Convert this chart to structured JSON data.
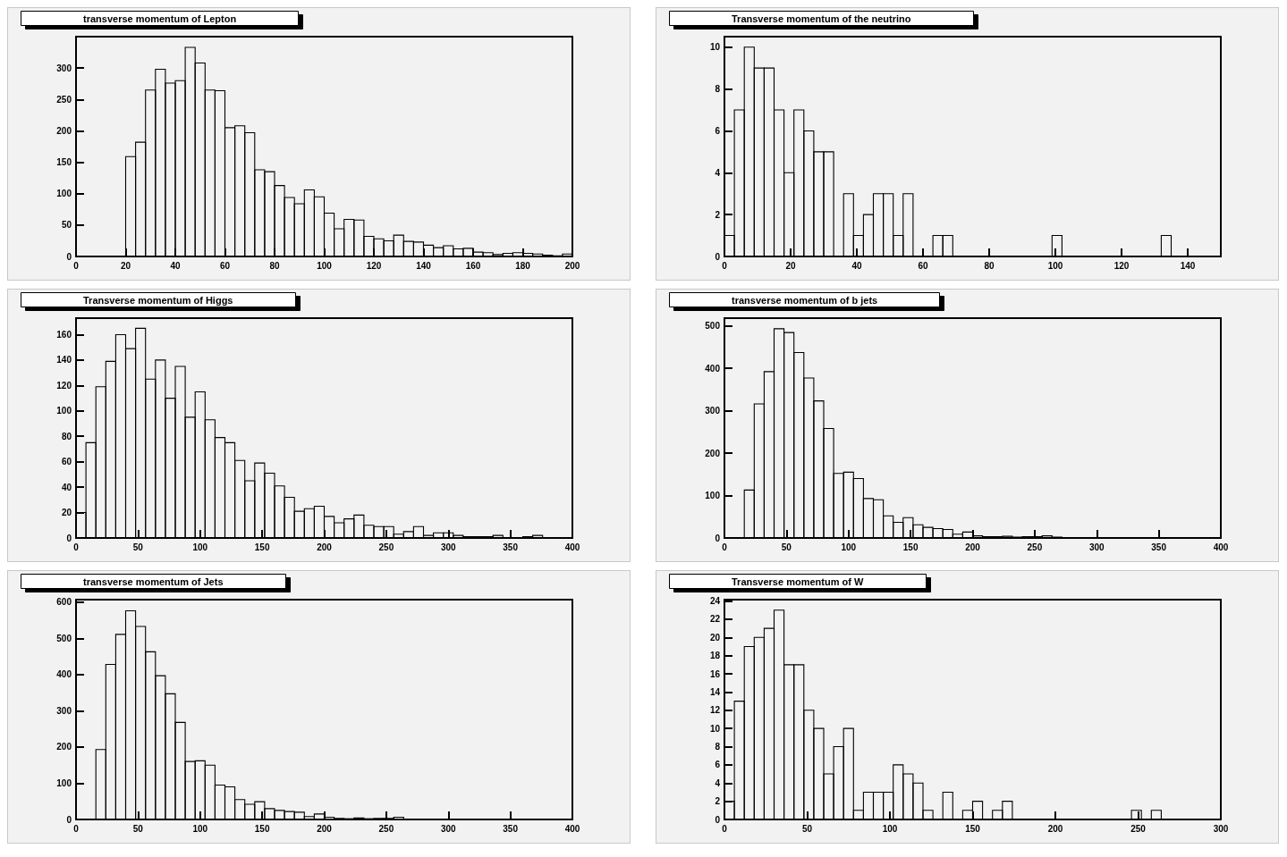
{
  "chart_data": [
    {
      "type": "histogram",
      "title": "transverse momentum of Lepton",
      "color": "#000000",
      "bins": [
        20,
        24,
        28,
        32,
        36,
        40,
        44,
        48,
        52,
        56,
        60,
        64,
        68,
        72,
        76,
        80,
        84,
        88,
        92,
        96,
        100,
        104,
        108,
        112,
        116,
        120,
        124,
        128,
        132,
        136,
        140,
        144,
        148,
        152,
        156,
        160,
        164,
        168,
        172,
        176,
        180,
        184,
        188,
        192,
        196,
        200
      ],
      "values": [
        159,
        182,
        265,
        298,
        276,
        280,
        333,
        308,
        265,
        264,
        205,
        208,
        197,
        138,
        135,
        113,
        94,
        84,
        106,
        95,
        69,
        44,
        59,
        58,
        32,
        28,
        25,
        34,
        24,
        23,
        18,
        14,
        17,
        12,
        13,
        7,
        6,
        3,
        5,
        6,
        5,
        4,
        2,
        1,
        4
      ],
      "xlim": [
        0,
        200
      ],
      "xticks": [
        0,
        20,
        40,
        60,
        80,
        100,
        120,
        140,
        160,
        180,
        200
      ],
      "ylim": [
        0,
        350
      ],
      "yticks": [
        0,
        50,
        100,
        150,
        200,
        250,
        300
      ]
    },
    {
      "type": "histogram",
      "title": "Transverse momentum of the neutrino",
      "color": "#000000",
      "bins": [
        0,
        3,
        6,
        9,
        12,
        15,
        18,
        21,
        24,
        27,
        30,
        33,
        36,
        39,
        42,
        45,
        48,
        51,
        54,
        57,
        60,
        63,
        66,
        69,
        72,
        75,
        78,
        81,
        84,
        87,
        90,
        93,
        96,
        99,
        102,
        105,
        108,
        111,
        114,
        117,
        120,
        123,
        126,
        129,
        132,
        135,
        138,
        141,
        144,
        147,
        150
      ],
      "values": [
        1,
        7,
        10,
        9,
        9,
        7,
        4,
        7,
        6,
        5,
        5,
        0,
        3,
        1,
        2,
        3,
        3,
        1,
        3,
        0,
        0,
        1,
        1,
        0,
        0,
        0,
        0,
        0,
        0,
        0,
        0,
        0,
        0,
        1,
        0,
        0,
        0,
        0,
        0,
        0,
        0,
        0,
        0,
        0,
        1,
        0,
        0,
        0,
        0,
        0
      ],
      "xlim": [
        0,
        150
      ],
      "xticks": [
        0,
        20,
        40,
        60,
        80,
        100,
        120,
        140
      ],
      "ylim": [
        0,
        10.5
      ],
      "yticks": [
        0,
        2,
        4,
        6,
        8,
        10
      ]
    },
    {
      "type": "histogram",
      "title": "Transverse momentum of Higgs",
      "color": "#000000",
      "bins": [
        0,
        8,
        16,
        24,
        32,
        40,
        48,
        56,
        64,
        72,
        80,
        88,
        96,
        104,
        112,
        120,
        128,
        136,
        144,
        152,
        160,
        168,
        176,
        184,
        192,
        200,
        208,
        216,
        224,
        232,
        240,
        248,
        256,
        264,
        272,
        280,
        288,
        296,
        304,
        312,
        320,
        328,
        336,
        344,
        352,
        360,
        368,
        376
      ],
      "values": [
        20,
        75,
        119,
        139,
        160,
        149,
        165,
        125,
        140,
        110,
        135,
        95,
        115,
        93,
        79,
        75,
        61,
        45,
        59,
        51,
        41,
        32,
        21,
        23,
        25,
        17,
        12,
        15,
        18,
        10,
        9,
        9,
        3,
        5,
        9,
        2,
        4,
        4,
        2,
        1,
        1,
        1,
        2,
        0,
        0,
        1,
        2
      ],
      "xlim": [
        0,
        400
      ],
      "xticks": [
        0,
        50,
        100,
        150,
        200,
        250,
        300,
        350,
        400
      ],
      "ylim": [
        0,
        173
      ],
      "yticks": [
        0,
        20,
        40,
        60,
        80,
        100,
        120,
        140,
        160
      ]
    },
    {
      "type": "histogram",
      "title": "transverse momentum of b jets",
      "color": "#000000",
      "bins": [
        16,
        24,
        32,
        40,
        48,
        56,
        64,
        72,
        80,
        88,
        96,
        104,
        112,
        120,
        128,
        136,
        144,
        152,
        160,
        168,
        176,
        184,
        192,
        200,
        208,
        216,
        224,
        232,
        240,
        248,
        256,
        264,
        272
      ],
      "values": [
        113,
        316,
        392,
        493,
        484,
        437,
        377,
        323,
        258,
        152,
        155,
        140,
        93,
        90,
        52,
        37,
        48,
        31,
        25,
        22,
        20,
        9,
        14,
        5,
        3,
        3,
        4,
        2,
        3,
        3,
        5,
        2
      ],
      "xlim": [
        0,
        400
      ],
      "xticks": [
        0,
        50,
        100,
        150,
        200,
        250,
        300,
        350,
        400
      ],
      "ylim": [
        0,
        518
      ],
      "yticks": [
        0,
        100,
        200,
        300,
        400,
        500
      ]
    },
    {
      "type": "histogram",
      "title": "transverse momentum of Jets",
      "color": "#000000",
      "bins": [
        16,
        24,
        32,
        40,
        48,
        56,
        64,
        72,
        80,
        88,
        96,
        104,
        112,
        120,
        128,
        136,
        144,
        152,
        160,
        168,
        176,
        184,
        192,
        200,
        208,
        216,
        224,
        232,
        240,
        248,
        256,
        264
      ],
      "values": [
        193,
        428,
        511,
        576,
        533,
        463,
        397,
        347,
        268,
        160,
        162,
        150,
        95,
        90,
        55,
        42,
        49,
        30,
        25,
        22,
        20,
        8,
        15,
        6,
        3,
        2,
        4,
        2,
        3,
        3,
        6
      ],
      "xlim": [
        0,
        400
      ],
      "xticks": [
        0,
        50,
        100,
        150,
        200,
        250,
        300,
        350,
        400
      ],
      "ylim": [
        0,
        607
      ],
      "yticks": [
        0,
        100,
        200,
        300,
        400,
        500,
        600
      ]
    },
    {
      "type": "histogram",
      "title": "Transverse momentum of W",
      "color": "#000000",
      "bins": [
        0,
        6,
        12,
        18,
        24,
        30,
        36,
        42,
        48,
        54,
        60,
        66,
        72,
        78,
        84,
        90,
        96,
        102,
        108,
        114,
        120,
        126,
        132,
        138,
        144,
        150,
        156,
        162,
        168,
        174,
        180,
        186,
        192,
        198,
        204,
        210,
        216,
        222,
        228,
        234,
        240,
        246,
        252,
        258,
        264
      ],
      "values": [
        2,
        13,
        19,
        20,
        21,
        23,
        17,
        17,
        12,
        10,
        5,
        8,
        10,
        1,
        3,
        3,
        3,
        6,
        5,
        4,
        1,
        0,
        3,
        0,
        1,
        2,
        0,
        1,
        2,
        0,
        0,
        0,
        0,
        0,
        0,
        0,
        0,
        0,
        0,
        0,
        0,
        1,
        0,
        1
      ],
      "xlim": [
        0,
        300
      ],
      "xticks": [
        0,
        50,
        100,
        150,
        200,
        250,
        300
      ],
      "ylim": [
        0,
        24.15
      ],
      "yticks": [
        0,
        2,
        4,
        6,
        8,
        10,
        12,
        14,
        16,
        18,
        20,
        22,
        24
      ]
    }
  ]
}
